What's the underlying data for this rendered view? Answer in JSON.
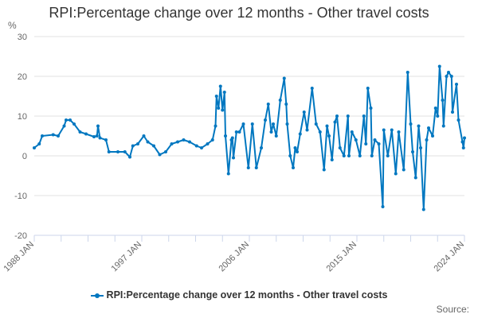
{
  "chart_data": {
    "type": "line",
    "title": "RPI:Percentage change over 12 months - Other travel costs",
    "ylabel": "%",
    "xlabel": "",
    "ylim": [
      -20,
      30
    ],
    "yticks": [
      30,
      20,
      10,
      0,
      -10,
      -20
    ],
    "xlim": [
      "1988-01",
      "2024-01"
    ],
    "xtick_labels": [
      "1988 JAN",
      "1997 JAN",
      "2006 JAN",
      "2015 JAN",
      "2024 JAN"
    ],
    "grid": true,
    "legend_position": "bottom",
    "color": "#0077c0",
    "series": [
      {
        "name": "RPI:Percentage change over 12 months - Other travel costs",
        "points": [
          [
            "1988-01",
            2
          ],
          [
            "1988-06",
            3
          ],
          [
            "1988-09",
            5
          ],
          [
            "1989-08",
            5.3
          ],
          [
            "1990-01",
            5
          ],
          [
            "1990-07",
            7.5
          ],
          [
            "1990-09",
            9
          ],
          [
            "1991-01",
            9
          ],
          [
            "1991-05",
            8
          ],
          [
            "1991-11",
            6
          ],
          [
            "1992-05",
            5.5
          ],
          [
            "1993-01",
            4.8
          ],
          [
            "1993-04",
            5
          ],
          [
            "1993-05",
            7.5
          ],
          [
            "1993-07",
            4.5
          ],
          [
            "1994-01",
            4
          ],
          [
            "1994-04",
            1
          ],
          [
            "1995-01",
            1
          ],
          [
            "1995-08",
            1
          ],
          [
            "1996-01",
            -0.3
          ],
          [
            "1996-04",
            2.5
          ],
          [
            "1996-09",
            3
          ],
          [
            "1997-03",
            5
          ],
          [
            "1997-07",
            3.5
          ],
          [
            "1998-01",
            2.5
          ],
          [
            "1998-07",
            0.3
          ],
          [
            "1999-01",
            1
          ],
          [
            "1999-07",
            3
          ],
          [
            "2000-01",
            3.5
          ],
          [
            "2000-07",
            4
          ],
          [
            "2001-01",
            3.5
          ],
          [
            "2001-08",
            2.5
          ],
          [
            "2002-01",
            2
          ],
          [
            "2002-07",
            3
          ],
          [
            "2002-12",
            4
          ],
          [
            "2003-03",
            7.5
          ],
          [
            "2003-04",
            15
          ],
          [
            "2003-06",
            12
          ],
          [
            "2003-08",
            17.5
          ],
          [
            "2003-10",
            11.5
          ],
          [
            "2003-12",
            16
          ],
          [
            "2004-01",
            5
          ],
          [
            "2004-04",
            -4.5
          ],
          [
            "2004-07",
            4
          ],
          [
            "2004-08",
            4.5
          ],
          [
            "2004-09",
            -0.5
          ],
          [
            "2004-12",
            6
          ],
          [
            "2005-03",
            6
          ],
          [
            "2005-07",
            8
          ],
          [
            "2005-12",
            -3
          ],
          [
            "2006-04",
            8
          ],
          [
            "2006-08",
            -3
          ],
          [
            "2007-01",
            2
          ],
          [
            "2007-05",
            9
          ],
          [
            "2007-08",
            13
          ],
          [
            "2007-11",
            6
          ],
          [
            "2008-01",
            8
          ],
          [
            "2008-04",
            5
          ],
          [
            "2008-08",
            14
          ],
          [
            "2008-12",
            19.5
          ],
          [
            "2009-02",
            13
          ],
          [
            "2009-03",
            8
          ],
          [
            "2009-06",
            0
          ],
          [
            "2009-09",
            -3
          ],
          [
            "2009-11",
            2
          ],
          [
            "2010-01",
            1
          ],
          [
            "2010-04",
            5.5
          ],
          [
            "2010-08",
            11
          ],
          [
            "2010-11",
            6.5
          ],
          [
            "2011-04",
            17
          ],
          [
            "2011-08",
            8
          ],
          [
            "2011-12",
            6
          ],
          [
            "2012-04",
            -3.5
          ],
          [
            "2012-07",
            7.5
          ],
          [
            "2012-09",
            5
          ],
          [
            "2012-12",
            -1
          ],
          [
            "2013-03",
            8.5
          ],
          [
            "2013-05",
            10
          ],
          [
            "2013-08",
            2
          ],
          [
            "2013-12",
            0
          ],
          [
            "2014-04",
            10
          ],
          [
            "2014-05",
            0
          ],
          [
            "2014-08",
            6
          ],
          [
            "2014-12",
            4
          ],
          [
            "2015-04",
            0
          ],
          [
            "2015-08",
            10
          ],
          [
            "2015-10",
            3
          ],
          [
            "2015-12",
            17
          ],
          [
            "2016-03",
            12
          ],
          [
            "2016-04",
            0
          ],
          [
            "2016-07",
            4
          ],
          [
            "2016-11",
            3
          ],
          [
            "2017-03",
            -12.8
          ],
          [
            "2017-04",
            6.5
          ],
          [
            "2017-08",
            0
          ],
          [
            "2017-12",
            6.5
          ],
          [
            "2018-04",
            -4.5
          ],
          [
            "2018-07",
            6
          ],
          [
            "2018-12",
            -3.5
          ],
          [
            "2019-04",
            21
          ],
          [
            "2019-07",
            8
          ],
          [
            "2019-09",
            1
          ],
          [
            "2019-12",
            -5.5
          ],
          [
            "2020-03",
            7.5
          ],
          [
            "2020-05",
            2
          ],
          [
            "2020-08",
            -13.5
          ],
          [
            "2020-11",
            4
          ],
          [
            "2021-01",
            7
          ],
          [
            "2021-05",
            5
          ],
          [
            "2021-08",
            12
          ],
          [
            "2021-10",
            10
          ],
          [
            "2021-12",
            22.5
          ],
          [
            "2022-03",
            14
          ],
          [
            "2022-04",
            7.5
          ],
          [
            "2022-07",
            20
          ],
          [
            "2022-09",
            21
          ],
          [
            "2022-12",
            20
          ],
          [
            "2023-01",
            11
          ],
          [
            "2023-05",
            18
          ],
          [
            "2023-07",
            9
          ],
          [
            "2023-11",
            3.5
          ],
          [
            "2023-12",
            2
          ],
          [
            "2024-01",
            4.5
          ]
        ]
      }
    ]
  },
  "legend": {
    "label": "RPI:Percentage change over 12 months - Other travel costs"
  },
  "source": {
    "label": "Source:"
  }
}
